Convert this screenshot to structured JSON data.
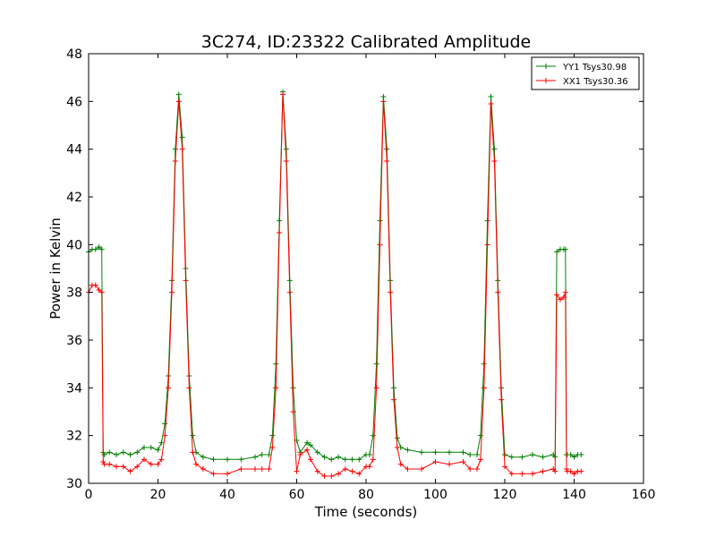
{
  "chart_data": {
    "type": "line",
    "title": "3C274, ID:23322 Calibrated Amplitude",
    "xlabel": "Time (seconds)",
    "ylabel": "Power in Kelvin",
    "xlim": [
      0,
      160
    ],
    "ylim": [
      30,
      48
    ],
    "xticks": [
      0,
      20,
      40,
      60,
      80,
      100,
      120,
      140,
      160
    ],
    "yticks": [
      30,
      32,
      34,
      36,
      38,
      40,
      42,
      44,
      46,
      48
    ],
    "grid": false,
    "legend_position": "top-right",
    "marker": "+",
    "series": [
      {
        "name": "YY1 Tsys30.98",
        "color": "#008000",
        "x": [
          0,
          1,
          2,
          3,
          3.8,
          4.2,
          4.5,
          6,
          8,
          10,
          12,
          14,
          16,
          18,
          20,
          21,
          22,
          23,
          24,
          25,
          26,
          27,
          28,
          29,
          30,
          31,
          33,
          36,
          40,
          44,
          48,
          50,
          52,
          53,
          54,
          55,
          56,
          57,
          58,
          59,
          60,
          61,
          63,
          64,
          66,
          68,
          70,
          72,
          74,
          76,
          78,
          80,
          81,
          82,
          83,
          84,
          85,
          86,
          87,
          88,
          89,
          90,
          92,
          96,
          100,
          104,
          108,
          110,
          112,
          113,
          114,
          115,
          116,
          117,
          118,
          119,
          120,
          122,
          125,
          128,
          131,
          134,
          134.5,
          135,
          136,
          137,
          137.5,
          137.8,
          138,
          139,
          140,
          141,
          142
        ],
        "y": [
          39.7,
          39.8,
          39.8,
          39.9,
          39.8,
          31.3,
          31.2,
          31.3,
          31.2,
          31.3,
          31.2,
          31.3,
          31.5,
          31.5,
          31.4,
          31.7,
          32.5,
          34.5,
          38.5,
          44.0,
          46.3,
          44.5,
          39.0,
          34.5,
          32.0,
          31.3,
          31.1,
          31.0,
          31.0,
          31.0,
          31.1,
          31.2,
          31.2,
          32.0,
          35.0,
          41.0,
          46.4,
          44.0,
          38.5,
          34.0,
          31.8,
          31.3,
          31.7,
          31.6,
          31.3,
          31.1,
          31.0,
          31.1,
          31.0,
          31.0,
          31.0,
          31.2,
          31.2,
          32.0,
          35.0,
          41.0,
          46.2,
          44.0,
          38.5,
          34.0,
          31.9,
          31.5,
          31.4,
          31.3,
          31.3,
          31.3,
          31.3,
          31.2,
          31.2,
          32.0,
          35.0,
          41.0,
          46.2,
          44.0,
          38.5,
          34.0,
          31.2,
          31.1,
          31.1,
          31.2,
          31.1,
          31.2,
          31.1,
          39.7,
          39.8,
          39.8,
          39.8,
          31.2,
          31.2,
          31.2,
          31.1,
          31.2,
          31.2
        ]
      },
      {
        "name": "XX1 Tsys30.36",
        "color": "#ff0000",
        "x": [
          0,
          1,
          2,
          3,
          3.8,
          4.2,
          4.5,
          6,
          8,
          10,
          12,
          14,
          16,
          18,
          20,
          21,
          22,
          23,
          24,
          25,
          26,
          27,
          28,
          29,
          30,
          31,
          33,
          36,
          40,
          44,
          48,
          50,
          52,
          53,
          54,
          55,
          56,
          57,
          58,
          59,
          60,
          61,
          63,
          64,
          66,
          68,
          70,
          72,
          74,
          76,
          78,
          80,
          81,
          82,
          83,
          84,
          85,
          86,
          87,
          88,
          89,
          90,
          92,
          96,
          100,
          104,
          108,
          110,
          112,
          113,
          114,
          115,
          116,
          117,
          118,
          119,
          120,
          122,
          125,
          128,
          131,
          134,
          134.5,
          135,
          136,
          137,
          137.5,
          137.8,
          138,
          139,
          140,
          141,
          142
        ],
        "y": [
          38.0,
          38.3,
          38.3,
          38.1,
          38.0,
          30.9,
          30.8,
          30.8,
          30.7,
          30.7,
          30.5,
          30.7,
          31.0,
          30.8,
          30.8,
          31.0,
          32.0,
          34.0,
          38.0,
          43.5,
          46.0,
          44.0,
          38.5,
          34.0,
          31.3,
          30.8,
          30.6,
          30.4,
          30.4,
          30.6,
          30.6,
          30.6,
          30.6,
          31.5,
          34.0,
          40.5,
          46.3,
          43.5,
          38.0,
          33.0,
          30.5,
          31.2,
          31.4,
          31.0,
          30.5,
          30.3,
          30.3,
          30.4,
          30.6,
          30.5,
          30.4,
          30.7,
          30.7,
          31.0,
          34.0,
          40.0,
          46.0,
          43.5,
          38.0,
          33.5,
          31.5,
          30.8,
          30.6,
          30.6,
          30.9,
          30.8,
          30.9,
          30.6,
          30.6,
          31.0,
          34.0,
          40.0,
          45.9,
          43.5,
          38.0,
          33.5,
          30.7,
          30.4,
          30.4,
          30.4,
          30.5,
          30.6,
          30.5,
          37.9,
          37.7,
          37.8,
          38.0,
          30.6,
          30.5,
          30.5,
          30.4,
          30.5,
          30.5
        ]
      }
    ]
  }
}
